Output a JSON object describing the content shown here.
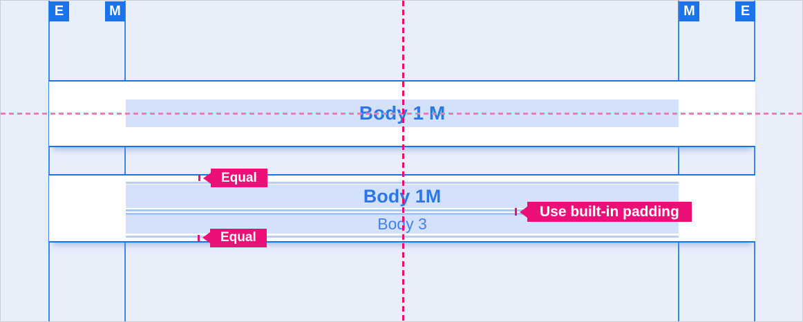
{
  "markers": {
    "e_left": "E",
    "m_left": "M",
    "m_right": "M",
    "e_right": "E"
  },
  "rows": {
    "body1m_large": "Body 1 M",
    "body1m_medium": "Body 1M",
    "body3": "Body 3"
  },
  "annotations": {
    "equal_top": "Equal",
    "equal_bottom": "Equal",
    "use_padding": "Use built-in padding"
  },
  "colors": {
    "blue": "#1a73e8",
    "band": "#d3e1fb",
    "pink": "#ec0f77",
    "kpink": "#f07ab3",
    "kmag": "#e8126e",
    "bg": "#e9eefb"
  }
}
